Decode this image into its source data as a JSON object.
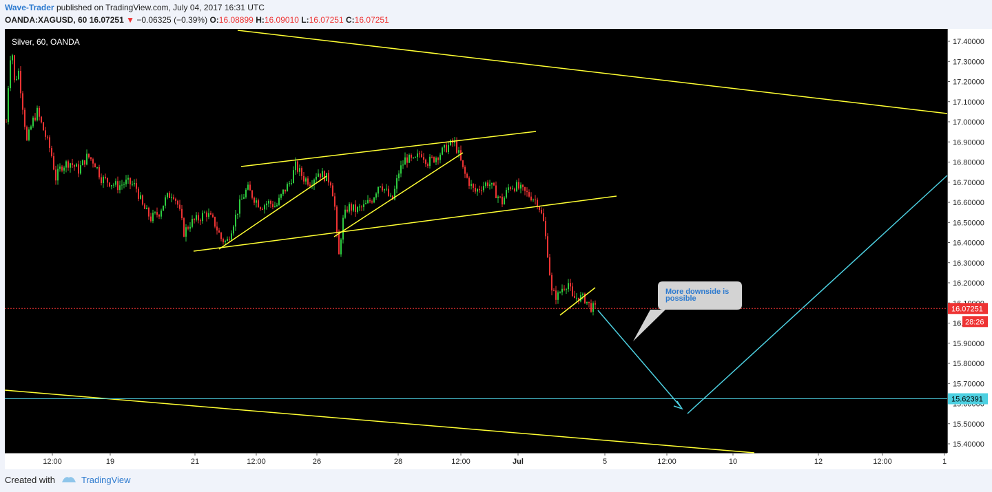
{
  "header": {
    "author": "Wave-Trader",
    "published_text": "published on TradingView.com, July 04, 2017 16:31 UTC",
    "symbol": "OANDA:XAGUSD, 60",
    "last_price": "16.07251",
    "change_arrow": "▼",
    "change": "−0.06325 (−0.39%)",
    "open_label": "O:",
    "open": "16.08899",
    "high_label": "H:",
    "high": "16.09010",
    "low_label": "L:",
    "low": "16.07251",
    "close_label": "C:",
    "close": "16.07251"
  },
  "chart_data": {
    "type": "candlestick",
    "legend": "Silver, 60, OANDA",
    "ylim": [
      15.36,
      17.46
    ],
    "y_ticks": [
      "17.40000",
      "17.30000",
      "17.20000",
      "17.10000",
      "17.00000",
      "16.90000",
      "16.80000",
      "16.70000",
      "16.60000",
      "16.50000",
      "16.40000",
      "16.30000",
      "16.20000",
      "16.10000",
      "16.00000",
      "15.90000",
      "15.80000",
      "15.70000",
      "15.60000",
      "15.50000",
      "15.40000"
    ],
    "x_ticks": [
      "12:00",
      "19",
      "21",
      "12:00",
      "26",
      "28",
      "12:00",
      "Jul",
      "5",
      "12:00",
      "10",
      "12",
      "12:00",
      "1"
    ],
    "price_badge": {
      "value": "16.07251",
      "countdown": "28:26",
      "overlap_text": "16.",
      "color": "#e33"
    },
    "target_badge": {
      "value": "15.62391",
      "color": "#4dd0e1"
    },
    "price_path": [
      [
        0,
        17.0
      ],
      [
        5,
        17.3
      ],
      [
        8,
        17.38
      ],
      [
        12,
        17.2
      ],
      [
        18,
        17.25
      ],
      [
        25,
        17.05
      ],
      [
        30,
        16.9
      ],
      [
        38,
        17.0
      ],
      [
        45,
        17.05
      ],
      [
        55,
        16.95
      ],
      [
        65,
        16.85
      ],
      [
        72,
        16.72
      ],
      [
        80,
        16.78
      ],
      [
        92,
        16.8
      ],
      [
        105,
        16.76
      ],
      [
        118,
        16.83
      ],
      [
        128,
        16.8
      ],
      [
        138,
        16.72
      ],
      [
        150,
        16.7
      ],
      [
        162,
        16.68
      ],
      [
        175,
        16.7
      ],
      [
        188,
        16.68
      ],
      [
        198,
        16.58
      ],
      [
        210,
        16.52
      ],
      [
        222,
        16.55
      ],
      [
        232,
        16.62
      ],
      [
        242,
        16.65
      ],
      [
        250,
        16.58
      ],
      [
        258,
        16.45
      ],
      [
        268,
        16.5
      ],
      [
        280,
        16.52
      ],
      [
        290,
        16.55
      ],
      [
        302,
        16.5
      ],
      [
        312,
        16.42
      ],
      [
        320,
        16.4
      ],
      [
        330,
        16.5
      ],
      [
        340,
        16.6
      ],
      [
        350,
        16.67
      ],
      [
        360,
        16.62
      ],
      [
        370,
        16.58
      ],
      [
        380,
        16.6
      ],
      [
        392,
        16.58
      ],
      [
        402,
        16.65
      ],
      [
        412,
        16.7
      ],
      [
        420,
        16.78
      ],
      [
        432,
        16.72
      ],
      [
        442,
        16.7
      ],
      [
        452,
        16.75
      ],
      [
        462,
        16.73
      ],
      [
        472,
        16.7
      ],
      [
        478,
        16.55
      ],
      [
        482,
        16.3
      ],
      [
        488,
        16.5
      ],
      [
        496,
        16.58
      ],
      [
        508,
        16.56
      ],
      [
        520,
        16.58
      ],
      [
        532,
        16.62
      ],
      [
        542,
        16.7
      ],
      [
        552,
        16.65
      ],
      [
        560,
        16.6
      ],
      [
        570,
        16.75
      ],
      [
        580,
        16.82
      ],
      [
        592,
        16.8
      ],
      [
        602,
        16.85
      ],
      [
        612,
        16.8
      ],
      [
        622,
        16.82
      ],
      [
        632,
        16.85
      ],
      [
        642,
        16.88
      ],
      [
        650,
        16.9
      ],
      [
        656,
        16.85
      ],
      [
        664,
        16.75
      ],
      [
        672,
        16.7
      ],
      [
        680,
        16.65
      ],
      [
        690,
        16.68
      ],
      [
        700,
        16.7
      ],
      [
        710,
        16.65
      ],
      [
        720,
        16.6
      ],
      [
        730,
        16.68
      ],
      [
        740,
        16.68
      ],
      [
        752,
        16.65
      ],
      [
        762,
        16.63
      ],
      [
        772,
        16.6
      ],
      [
        780,
        16.5
      ],
      [
        786,
        16.35
      ],
      [
        792,
        16.15
      ],
      [
        800,
        16.13
      ],
      [
        808,
        16.18
      ],
      [
        816,
        16.2
      ],
      [
        822,
        16.12
      ],
      [
        830,
        16.13
      ],
      [
        840,
        16.12
      ],
      [
        848,
        16.08
      ],
      [
        856,
        16.07
      ]
    ],
    "annotations": [
      {
        "type": "callout",
        "text_line1": "More downside is",
        "text_line2": "possible"
      }
    ]
  },
  "footer": {
    "created_with": "Created with",
    "brand": "TradingView"
  }
}
